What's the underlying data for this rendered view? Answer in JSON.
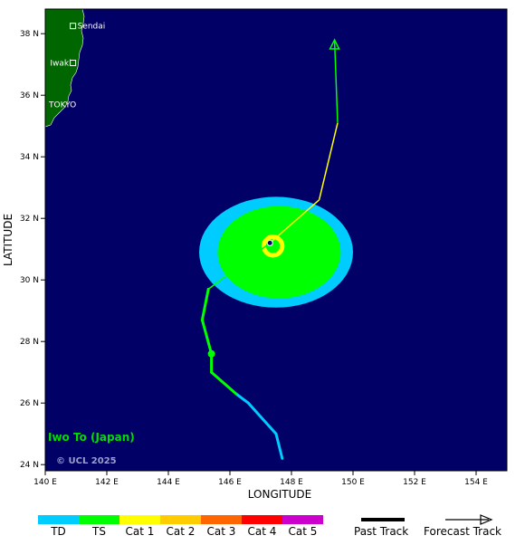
{
  "map": {
    "axes": {
      "xlabel": "LONGITUDE",
      "ylabel": "LATITUDE",
      "lon_ticks": [
        "140 E",
        "142 E",
        "144 E",
        "146 E",
        "148 E",
        "150 E",
        "152 E",
        "154 E"
      ],
      "lat_ticks": [
        "38 N",
        "36 N",
        "34 N",
        "32 N",
        "30 N",
        "28 N",
        "26 N",
        "24 N"
      ],
      "lon_range": [
        140,
        155
      ],
      "lat_range": [
        23.8,
        38.8
      ]
    },
    "ocean_color": "#000066",
    "land_color": "#006600",
    "cities": [
      {
        "name": "Sendai",
        "lon": 140.9,
        "lat": 38.25
      },
      {
        "name": "Iwaki",
        "lon": 140.9,
        "lat": 37.05
      },
      {
        "name": "TOKYO",
        "lon": 139.7,
        "lat": 35.7
      }
    ],
    "place_label": "Iwo To (Japan)",
    "copyright": "© UCL 2025"
  },
  "storm": {
    "current_position": {
      "lon": 147.3,
      "lat": 31.2
    },
    "past_track": [
      {
        "lon": 147.7,
        "lat": 24.2,
        "category": "TD"
      },
      {
        "lon": 147.5,
        "lat": 25.0,
        "category": "TD"
      },
      {
        "lon": 146.6,
        "lat": 26.0,
        "category": "TD"
      },
      {
        "lon": 146.2,
        "lat": 26.3,
        "category": "TS"
      },
      {
        "lon": 145.4,
        "lat": 27.0,
        "category": "TS"
      },
      {
        "lon": 145.4,
        "lat": 27.6,
        "category": "TS"
      },
      {
        "lon": 145.1,
        "lat": 28.7,
        "category": "TS"
      },
      {
        "lon": 145.3,
        "lat": 29.7,
        "category": "TS"
      },
      {
        "lon": 147.3,
        "lat": 31.2,
        "category": "TS"
      }
    ],
    "marker": {
      "lon": 145.4,
      "lat": 27.6
    },
    "forecast_track": [
      {
        "lon": 147.3,
        "lat": 31.2,
        "category": "TS"
      },
      {
        "lon": 148.9,
        "lat": 32.6,
        "category": "Cat 1"
      },
      {
        "lon": 149.5,
        "lat": 35.1,
        "category": "Cat 1"
      },
      {
        "lon": 149.5,
        "lat": 35.1,
        "category": "TS"
      },
      {
        "lon": 149.4,
        "lat": 37.8,
        "category": "TS"
      }
    ],
    "wind_fields": [
      {
        "category": "TD",
        "center_lon": 147.5,
        "center_lat": 30.9,
        "radius_lon": 2.5,
        "radius_lat": 1.8
      },
      {
        "category": "TS",
        "center_lon": 147.6,
        "center_lat": 30.9,
        "radius_lon": 2.0,
        "radius_lat": 1.5
      },
      {
        "category": "Cat 1",
        "center_lon": 147.4,
        "center_lat": 31.1,
        "radius_lon": 0.3,
        "radius_lat": 0.3
      }
    ]
  },
  "legend": {
    "categories": [
      {
        "label": "TD",
        "color": "#00ccff"
      },
      {
        "label": "TS",
        "color": "#00ff00"
      },
      {
        "label": "Cat 1",
        "color": "#ffff00"
      },
      {
        "label": "Cat 2",
        "color": "#ffcc00"
      },
      {
        "label": "Cat 3",
        "color": "#ff6600"
      },
      {
        "label": "Cat 4",
        "color": "#ff0000"
      },
      {
        "label": "Cat 5",
        "color": "#cc00cc"
      }
    ],
    "past_track_label": "Past Track",
    "forecast_track_label": "Forecast Track"
  }
}
